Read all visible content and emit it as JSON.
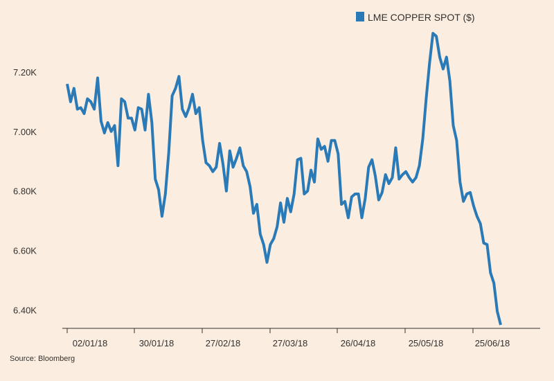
{
  "chart_data": {
    "type": "line",
    "title": "",
    "xlabel": "",
    "ylabel": "",
    "legend": "top-right",
    "grid": false,
    "ylim": [
      6350,
      7350
    ],
    "y_ticks": [
      6400,
      6600,
      6800,
      7000,
      7200
    ],
    "y_tick_labels": [
      "6.40K",
      "6.60K",
      "6.80K",
      "7.00K",
      "7.20K"
    ],
    "x_tick_labels": [
      "02/01/18",
      "30/01/18",
      "27/02/18",
      "27/03/18",
      "26/04/18",
      "25/05/18",
      "25/06/18"
    ],
    "colors": {
      "series": "#2a7ab8",
      "axis": "#33302e",
      "background": "#fbeee0"
    },
    "series": [
      {
        "name": "LME COPPER SPOT ($)",
        "values": [
          7160,
          7100,
          7145,
          7075,
          7080,
          7060,
          7110,
          7100,
          7075,
          7180,
          7035,
          6995,
          7030,
          7000,
          7020,
          6885,
          7110,
          7100,
          7045,
          7045,
          7005,
          7080,
          7075,
          7005,
          7125,
          7030,
          6840,
          6805,
          6715,
          6790,
          6930,
          7120,
          7145,
          7185,
          7075,
          7050,
          7080,
          7125,
          7060,
          7080,
          6970,
          6895,
          6885,
          6865,
          6880,
          6960,
          6890,
          6800,
          6935,
          6880,
          6910,
          6945,
          6885,
          6865,
          6815,
          6725,
          6755,
          6655,
          6620,
          6560,
          6620,
          6640,
          6680,
          6760,
          6695,
          6775,
          6730,
          6790,
          6905,
          6910,
          6790,
          6800,
          6870,
          6830,
          6975,
          6940,
          6950,
          6900,
          6970,
          6970,
          6925,
          6755,
          6765,
          6710,
          6780,
          6790,
          6790,
          6710,
          6775,
          6880,
          6905,
          6850,
          6770,
          6795,
          6855,
          6825,
          6845,
          6945,
          6840,
          6855,
          6865,
          6845,
          6830,
          6845,
          6885,
          6975,
          7110,
          7230,
          7330,
          7320,
          7250,
          7210,
          7250,
          7170,
          7020,
          6970,
          6830,
          6765,
          6790,
          6795,
          6750,
          6715,
          6690,
          6625,
          6620,
          6525,
          6490,
          6395,
          6350
        ]
      }
    ]
  },
  "source": "Source: Bloomberg"
}
